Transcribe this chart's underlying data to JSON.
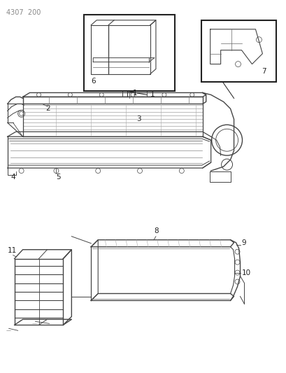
{
  "page_id": "4307  200",
  "bg_color": "#ffffff",
  "line_color": "#444444",
  "text_color": "#222222",
  "fig_width": 4.1,
  "fig_height": 5.33,
  "dpi": 100
}
